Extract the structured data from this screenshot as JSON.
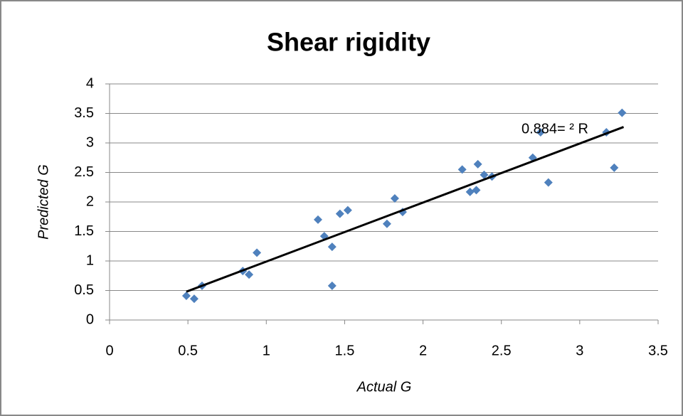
{
  "chart_data": {
    "type": "scatter",
    "title": "Shear rigidity",
    "x_label": "Actual G",
    "y_label": "Predicted G",
    "series": [
      {
        "name": "Predicted G",
        "color": "#4f81bd",
        "x": [
          0.49,
          0.54,
          0.59,
          0.85,
          0.89,
          0.94,
          1.33,
          1.37,
          1.42,
          1.42,
          1.47,
          1.52,
          1.77,
          1.82,
          1.87,
          2.25,
          2.3,
          2.35,
          2.34,
          2.39,
          2.44,
          2.7,
          2.75,
          2.8,
          3.17,
          3.22,
          3.27
        ],
        "values": [
          0.41,
          0.36,
          0.58,
          0.83,
          0.77,
          1.14,
          1.7,
          1.42,
          1.24,
          0.58,
          1.8,
          1.86,
          1.63,
          2.06,
          1.83,
          2.55,
          2.17,
          2.64,
          2.2,
          2.46,
          2.43,
          2.75,
          3.18,
          2.33,
          3.18,
          2.58,
          3.51
        ]
      }
    ],
    "trendline": {
      "color": "#000000",
      "x": [
        0.49,
        3.28
      ],
      "values": [
        0.48,
        3.27
      ]
    },
    "annotation": "0.884= ² R",
    "xlim": [
      0,
      3.5
    ],
    "xticks": [
      0,
      0.5,
      1,
      1.5,
      2,
      2.5,
      3,
      3.5
    ],
    "ylim": [
      0,
      4
    ],
    "yticks": [
      0,
      0.5,
      1,
      1.5,
      2,
      2.5,
      3,
      3.5,
      4
    ],
    "grid": true
  }
}
